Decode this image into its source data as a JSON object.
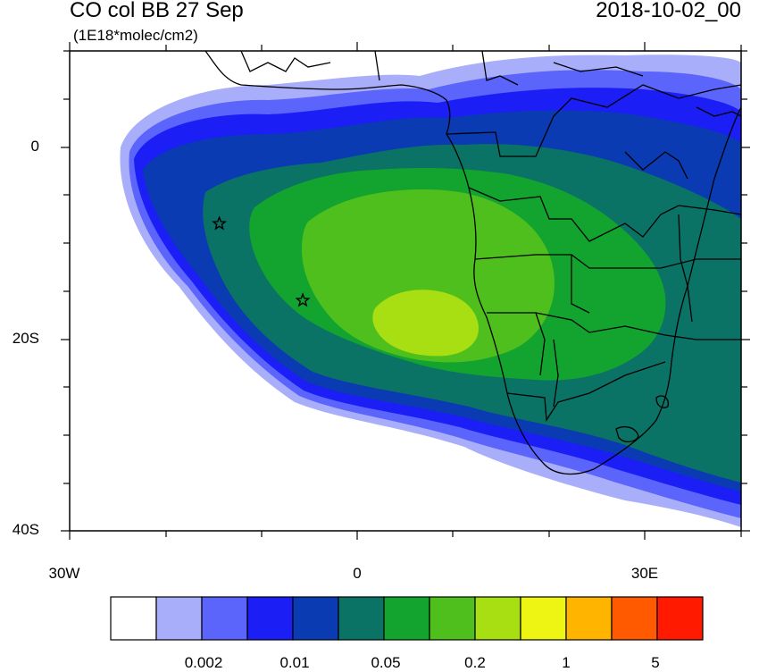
{
  "header": {
    "title": "CO col BB 27 Sep",
    "units": "(1E18*molec/cm2)",
    "datetime": "2018-10-02_00"
  },
  "axes": {
    "y_labels": [
      "0",
      "20S",
      "40S"
    ],
    "x_labels": [
      "30W",
      "0",
      "30E"
    ]
  },
  "colorbar": {
    "labels": [
      "0.002",
      "0.01",
      "0.05",
      "0.2",
      "1",
      "5"
    ],
    "colors": [
      "#ffffff",
      "#a9aefa",
      "#5b64fb",
      "#1b1ef5",
      "#0a3bb2",
      "#0b7266",
      "#12a42f",
      "#4fbf1d",
      "#a7df12",
      "#eef513",
      "#ffb400",
      "#ff5a00",
      "#ff1a00"
    ]
  },
  "markers": [
    {
      "name": "station-star-west",
      "lon": -14.4,
      "lat": -8.0
    },
    {
      "name": "station-star-east",
      "lon": -5.7,
      "lat": -16.0
    }
  ],
  "map": {
    "lon_range": [
      -30,
      40
    ],
    "lat_range": [
      -40,
      10
    ],
    "shading": "CO column plume over the South Atlantic and southern Africa"
  }
}
